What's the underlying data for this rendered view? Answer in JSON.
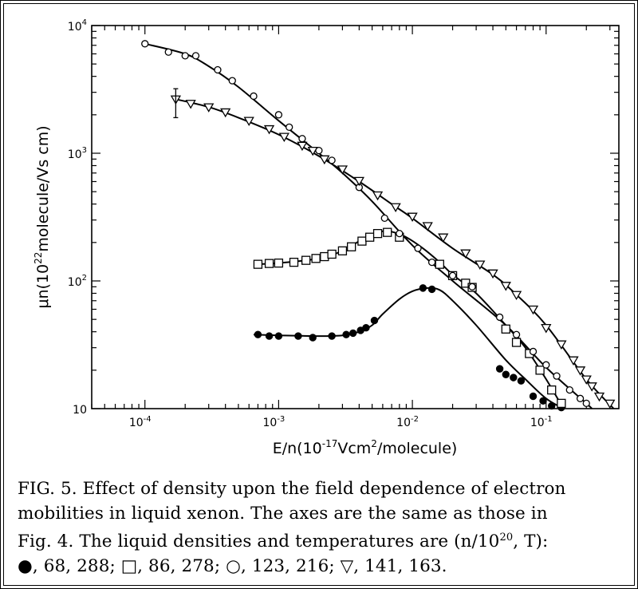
{
  "caption": {
    "line1": "FIG. 5.  Effect of density upon the field dependence of electron",
    "line2": "mobilities in liquid xenon.  The axes are the same as those in",
    "line3": "Fig. 4.  The liquid densities and temperatures are (n/10",
    "line3_sup": "20",
    "line3_end": ", T):",
    "line4": "●, 68, 288; □, 86, 278; ○, 123, 216; ▽, 141, 163."
  },
  "chart_data": {
    "type": "scatter",
    "x_scale": "log",
    "y_scale": "log",
    "xlim": [
      4e-05,
      0.35
    ],
    "ylim": [
      10,
      10000
    ],
    "xlabel": "E/n(10⁻¹⁷Vcm²/molecule)",
    "ylabel": "μn(10²²molecule/Vs cm)",
    "x_ticks": [
      {
        "value": 0.0001,
        "base": "10",
        "exp": "-4"
      },
      {
        "value": 0.001,
        "base": "10",
        "exp": "-3"
      },
      {
        "value": 0.01,
        "base": "10",
        "exp": "-2"
      },
      {
        "value": 0.1,
        "base": "10",
        "exp": "-1"
      }
    ],
    "y_ticks": [
      {
        "value": 10,
        "base": "10",
        "exp": ""
      },
      {
        "value": 100,
        "base": "10",
        "exp": "2"
      },
      {
        "value": 1000,
        "base": "10",
        "exp": "3"
      },
      {
        "value": 10000,
        "base": "10",
        "exp": "4"
      }
    ],
    "grid": false,
    "series": [
      {
        "marker": "filled-circle",
        "points": [
          [
            0.0007,
            38
          ],
          [
            0.00085,
            37
          ],
          [
            0.001,
            37
          ],
          [
            0.0014,
            37
          ],
          [
            0.0018,
            36
          ],
          [
            0.0025,
            37
          ],
          [
            0.0032,
            38
          ],
          [
            0.0036,
            39
          ],
          [
            0.0041,
            41
          ],
          [
            0.0045,
            43
          ],
          [
            0.0052,
            49
          ],
          [
            0.012,
            88
          ],
          [
            0.014,
            86
          ],
          [
            0.045,
            20.5
          ],
          [
            0.05,
            18.5
          ],
          [
            0.057,
            17.5
          ],
          [
            0.065,
            16.5
          ],
          [
            0.08,
            12.5
          ],
          [
            0.095,
            11.5
          ],
          [
            0.11,
            10.5
          ],
          [
            0.13,
            10.2
          ]
        ],
        "curve": [
          [
            0.00065,
            38
          ],
          [
            0.001,
            37.5
          ],
          [
            0.002,
            37
          ],
          [
            0.003,
            37.5
          ],
          [
            0.004,
            40
          ],
          [
            0.005,
            45
          ],
          [
            0.006,
            55
          ],
          [
            0.008,
            72
          ],
          [
            0.01,
            83
          ],
          [
            0.013,
            88
          ],
          [
            0.016,
            85
          ],
          [
            0.02,
            70
          ],
          [
            0.03,
            45
          ],
          [
            0.05,
            24
          ],
          [
            0.07,
            17
          ],
          [
            0.1,
            12
          ],
          [
            0.135,
            10
          ]
        ]
      },
      {
        "marker": "open-square",
        "points": [
          [
            0.0007,
            135
          ],
          [
            0.00085,
            137
          ],
          [
            0.001,
            138
          ],
          [
            0.0013,
            140
          ],
          [
            0.0016,
            145
          ],
          [
            0.0019,
            150
          ],
          [
            0.0022,
            155
          ],
          [
            0.0025,
            162
          ],
          [
            0.003,
            172
          ],
          [
            0.0035,
            185
          ],
          [
            0.0042,
            205
          ],
          [
            0.0048,
            220
          ],
          [
            0.0055,
            235
          ],
          [
            0.0065,
            240
          ],
          [
            0.008,
            220
          ],
          [
            0.016,
            135
          ],
          [
            0.02,
            110
          ],
          [
            0.025,
            96
          ],
          [
            0.028,
            89
          ],
          [
            0.05,
            42
          ],
          [
            0.06,
            33
          ],
          [
            0.075,
            27
          ],
          [
            0.09,
            20
          ],
          [
            0.11,
            14
          ],
          [
            0.13,
            11
          ]
        ],
        "curve": [
          [
            0.00065,
            135
          ],
          [
            0.001,
            138
          ],
          [
            0.002,
            150
          ],
          [
            0.003,
            172
          ],
          [
            0.004,
            205
          ],
          [
            0.005,
            232
          ],
          [
            0.006,
            245
          ],
          [
            0.007,
            243
          ],
          [
            0.009,
            220
          ],
          [
            0.012,
            180
          ],
          [
            0.016,
            140
          ],
          [
            0.02,
            112
          ],
          [
            0.03,
            80
          ],
          [
            0.05,
            45
          ],
          [
            0.07,
            30
          ],
          [
            0.1,
            17
          ],
          [
            0.135,
            10
          ]
        ]
      },
      {
        "marker": "open-circle",
        "points": [
          [
            0.0001,
            7200
          ],
          [
            0.00015,
            6200
          ],
          [
            0.0002,
            5800
          ],
          [
            0.00024,
            5800
          ],
          [
            0.00035,
            4500
          ],
          [
            0.00045,
            3700
          ],
          [
            0.00065,
            2800
          ],
          [
            0.001,
            2000
          ],
          [
            0.0012,
            1600
          ],
          [
            0.0015,
            1300
          ],
          [
            0.002,
            1050
          ],
          [
            0.0025,
            880
          ],
          [
            0.004,
            540
          ],
          [
            0.0062,
            310
          ],
          [
            0.008,
            235
          ],
          [
            0.011,
            180
          ],
          [
            0.014,
            140
          ],
          [
            0.02,
            110
          ],
          [
            0.028,
            90
          ],
          [
            0.045,
            52
          ],
          [
            0.06,
            38
          ],
          [
            0.08,
            28
          ],
          [
            0.1,
            22
          ],
          [
            0.12,
            18
          ],
          [
            0.15,
            14
          ],
          [
            0.18,
            12
          ],
          [
            0.2,
            11
          ]
        ],
        "curve": [
          [
            0.0001,
            7200
          ],
          [
            0.0002,
            6000
          ],
          [
            0.0003,
            4800
          ],
          [
            0.0005,
            3300
          ],
          [
            0.001,
            1800
          ],
          [
            0.002,
            1000
          ],
          [
            0.003,
            700
          ],
          [
            0.005,
            420
          ],
          [
            0.01,
            190
          ],
          [
            0.02,
            100
          ],
          [
            0.05,
            45
          ],
          [
            0.1,
            21
          ],
          [
            0.2,
            11
          ],
          [
            0.22,
            10
          ]
        ]
      },
      {
        "marker": "open-triangle-down",
        "points": [
          [
            0.00017,
            2650
          ],
          [
            0.00022,
            2450
          ],
          [
            0.0003,
            2300
          ],
          [
            0.0004,
            2100
          ],
          [
            0.0006,
            1800
          ],
          [
            0.00085,
            1550
          ],
          [
            0.0011,
            1350
          ],
          [
            0.0015,
            1150
          ],
          [
            0.0018,
            1050
          ],
          [
            0.0022,
            900
          ],
          [
            0.003,
            750
          ],
          [
            0.004,
            610
          ],
          [
            0.0055,
            470
          ],
          [
            0.0075,
            380
          ],
          [
            0.01,
            320
          ],
          [
            0.013,
            270
          ],
          [
            0.017,
            220
          ],
          [
            0.025,
            165
          ],
          [
            0.032,
            135
          ],
          [
            0.04,
            115
          ],
          [
            0.05,
            92
          ],
          [
            0.06,
            78
          ],
          [
            0.08,
            60
          ],
          [
            0.1,
            43
          ],
          [
            0.13,
            32
          ],
          [
            0.16,
            24
          ],
          [
            0.18,
            20
          ],
          [
            0.2,
            17
          ],
          [
            0.22,
            15
          ],
          [
            0.25,
            12.5
          ],
          [
            0.3,
            11
          ]
        ],
        "curve": [
          [
            0.00017,
            2650
          ],
          [
            0.0003,
            2300
          ],
          [
            0.0005,
            1900
          ],
          [
            0.001,
            1400
          ],
          [
            0.002,
            950
          ],
          [
            0.004,
            600
          ],
          [
            0.007,
            400
          ],
          [
            0.01,
            310
          ],
          [
            0.02,
            180
          ],
          [
            0.04,
            112
          ],
          [
            0.06,
            78
          ],
          [
            0.1,
            45
          ],
          [
            0.2,
            17
          ],
          [
            0.32,
            10
          ]
        ]
      }
    ],
    "error_bar": {
      "x": 0.00017,
      "y_low": 1900,
      "y_high": 3200
    }
  }
}
